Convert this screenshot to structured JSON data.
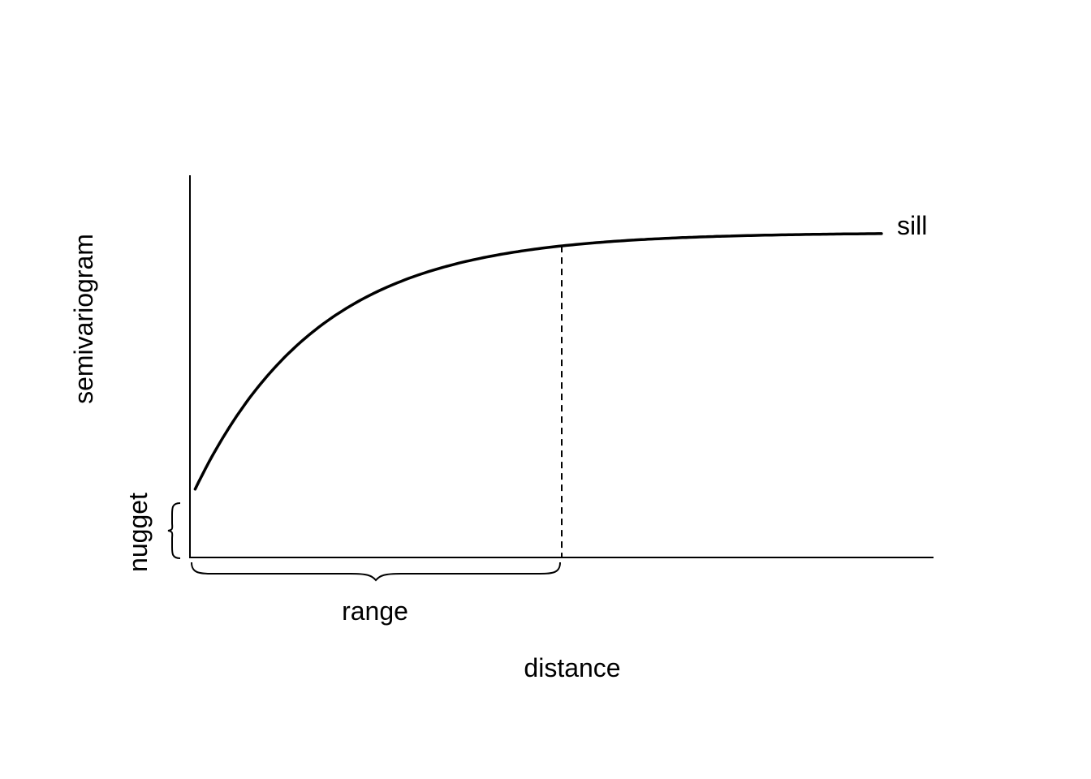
{
  "chart_data": {
    "type": "line",
    "title": "",
    "xlabel": "distance",
    "ylabel": "semivariogram",
    "grid": false,
    "legend": "none",
    "model": "exponential",
    "nugget": 0.15,
    "sill": 0.85,
    "range": 5,
    "xlim": [
      0,
      10
    ],
    "ylim": [
      0,
      1
    ],
    "annotations": {
      "sill": "sill",
      "nugget": "nugget",
      "range": "range"
    },
    "colors": {
      "curve": "#000000",
      "axes": "#000000"
    }
  }
}
